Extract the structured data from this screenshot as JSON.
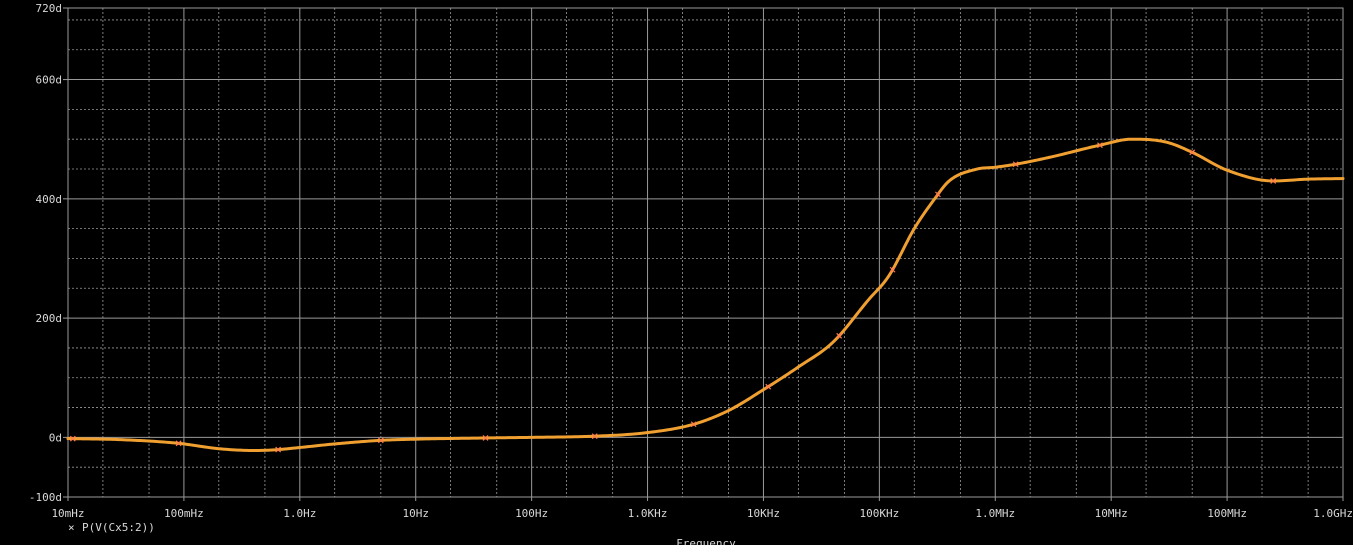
{
  "chart_data": {
    "type": "line",
    "title": "",
    "xlabel": "Frequency",
    "ylabel": "",
    "x_scale": "log",
    "xlim": [
      0.01,
      1000000000
    ],
    "ylim": [
      -100,
      720
    ],
    "grid": true,
    "x_tick_values": [
      0.01,
      0.1,
      1,
      10,
      100,
      1000,
      10000,
      100000,
      1000000,
      10000000,
      100000000,
      1000000000
    ],
    "x_tick_labels": [
      "10mHz",
      "100mHz",
      "1.0Hz",
      "10Hz",
      "100Hz",
      "1.0KHz",
      "10KHz",
      "100KHz",
      "1.0MHz",
      "10MHz",
      "100MHz",
      "1.0GHz"
    ],
    "y_tick_values": [
      -100,
      0,
      200,
      400,
      600,
      720
    ],
    "y_tick_labels": [
      "-100d",
      "0d",
      "200d",
      "400d",
      "600d",
      "720d"
    ],
    "series": [
      {
        "name": "P(V(Cx5:2))",
        "color": "#f0a030",
        "marker_color": "#ff7a50",
        "x": [
          0.01,
          0.03,
          0.09,
          0.2,
          0.4,
          0.6,
          1,
          2,
          5,
          10,
          40,
          100,
          350,
          1000,
          2500,
          5000,
          10000,
          20000,
          40000,
          80000,
          120000,
          200000,
          300000,
          400000,
          700000,
          1000000,
          1500000,
          3000000,
          8000000,
          15000000,
          30000000,
          50000000,
          100000000,
          250000000,
          500000000,
          1000000000
        ],
        "y": [
          -2,
          -4,
          -10,
          -19,
          -22,
          -21,
          -17,
          -11,
          -5,
          -3,
          -1,
          0,
          2,
          8,
          22,
          45,
          80,
          118,
          160,
          230,
          270,
          350,
          400,
          430,
          450,
          453,
          458,
          470,
          490,
          500,
          495,
          478,
          448,
          430,
          433,
          434
        ]
      }
    ],
    "marker_x": [
      0.011,
      0.09,
      0.65,
      5,
      40,
      350,
      2500,
      11000,
      45000,
      130000,
      320000,
      1500000,
      8000000,
      50000000,
      250000000
    ]
  },
  "legend": {
    "marker_symbol": "×",
    "label": "P(V(Cx5:2))"
  },
  "style": {
    "background": "#000000",
    "grid_color": "#9a9a9a",
    "text_color": "#d8d8d8"
  }
}
